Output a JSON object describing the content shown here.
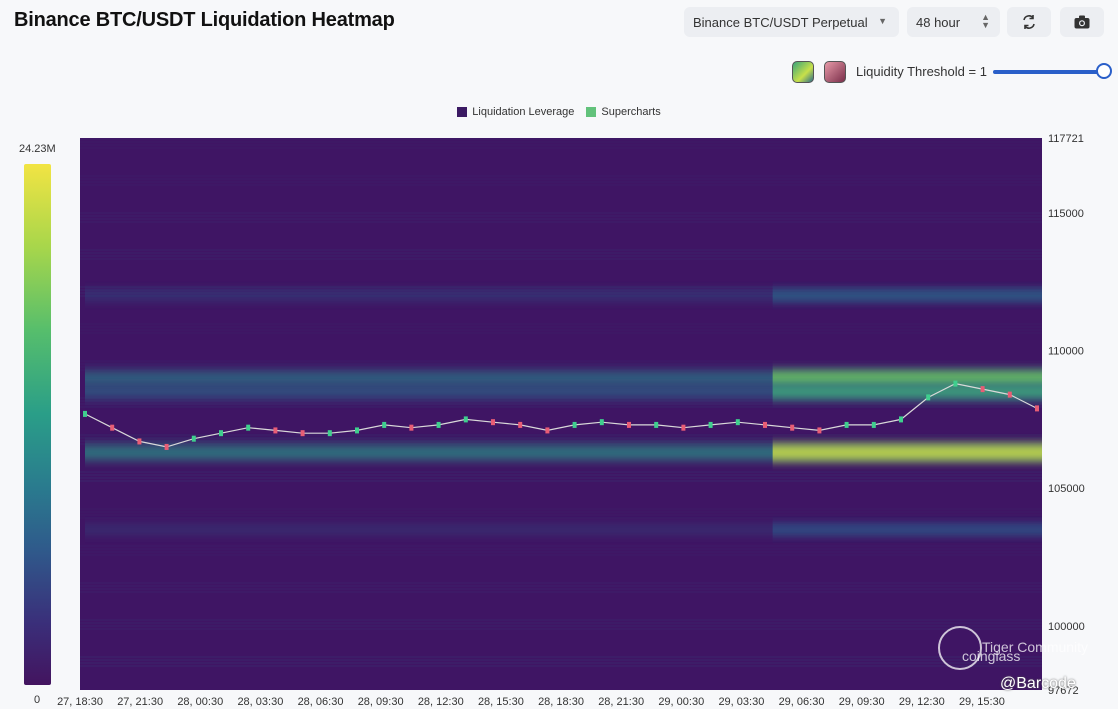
{
  "header": {
    "title": "Binance BTC/USDT Liquidation Heatmap",
    "pair_select": "Binance BTC/USDT Perpetual",
    "timeframe_select": "48 hour",
    "threshold_label": "Liquidity Threshold = 1",
    "threshold_value": 1
  },
  "icons": {
    "refresh": "refresh-icon",
    "camera": "camera-icon",
    "caret": "chevron-down-icon"
  },
  "colors": {
    "accent": "#2a5fc9",
    "heat_low": "#43145f",
    "heat_high": "#f2e443"
  },
  "chart_data": {
    "type": "heatmap",
    "title": "",
    "legend": [
      {
        "name": "Liquidation Leverage",
        "color": "#3b1a63"
      },
      {
        "name": "Supercharts",
        "color": "#62c27b"
      }
    ],
    "colorbar": {
      "max_label": "24.23M",
      "min_label": "0"
    },
    "yaxis_ticks": [
      "117721",
      "115000",
      "110000",
      "105000",
      "100000",
      "97672"
    ],
    "ylim": [
      97672,
      117721
    ],
    "xaxis_ticks": [
      "27, 18:30",
      "27, 21:30",
      "28, 00:30",
      "28, 03:30",
      "28, 06:30",
      "28, 09:30",
      "28, 12:30",
      "28, 15:30",
      "28, 18:30",
      "28, 21:30",
      "29, 00:30",
      "29, 03:30",
      "29, 06:30",
      "29, 09:30",
      "29, 12:30",
      "29, 15:30"
    ],
    "bands": [
      {
        "price": 112000,
        "intensity": 0.35
      },
      {
        "price": 109000,
        "intensity": 0.8
      },
      {
        "price": 108500,
        "intensity": 0.65
      },
      {
        "price": 106300,
        "intensity": 0.95
      },
      {
        "price": 103500,
        "intensity": 0.3
      }
    ],
    "price_series": [
      107700,
      107200,
      106700,
      106500,
      106800,
      107000,
      107200,
      107100,
      107000,
      107000,
      107100,
      107300,
      107200,
      107300,
      107500,
      107400,
      107300,
      107100,
      107300,
      107400,
      107300,
      107300,
      107200,
      107300,
      107400,
      107300,
      107200,
      107100,
      107300,
      107300,
      107500,
      108300,
      108800,
      108600,
      108400,
      107900
    ]
  },
  "watermark": {
    "community": "Tiger Community",
    "brand": "coinglass",
    "handle": "@Barcode"
  }
}
